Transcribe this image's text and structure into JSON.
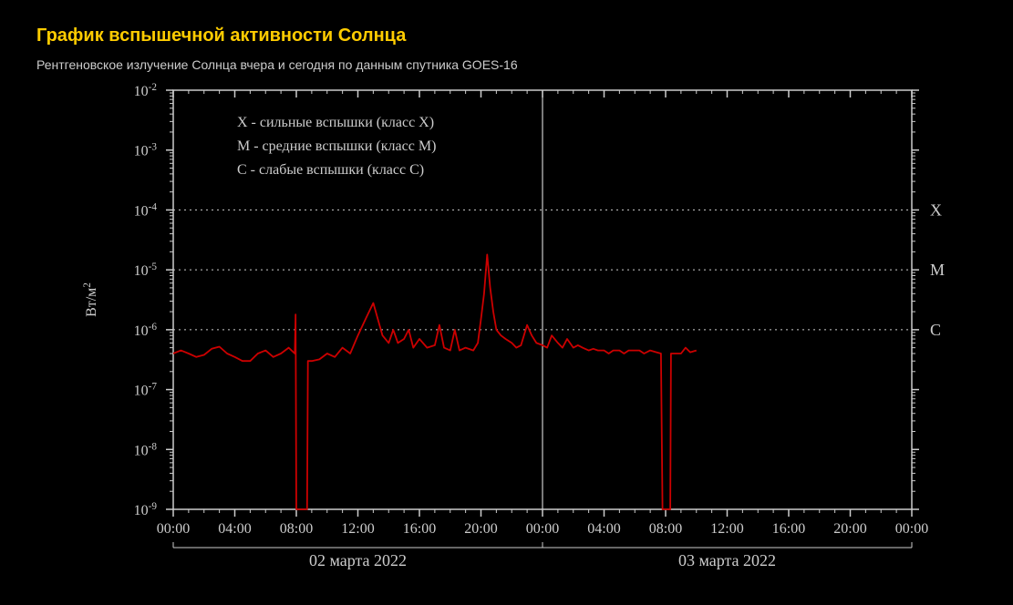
{
  "title": "График вспышечной активности Солнца",
  "subtitle": "Рентгеновское излучение Солнца вчера и сегодня по данным спутника GOES-16",
  "title_color": "#ffcc00",
  "subtitle_color": "#cccccc",
  "background_color": "#000000",
  "chart": {
    "type": "line",
    "plot_bg": "#000000",
    "axis_color": "#cccccc",
    "grid_color": "#555555",
    "line_color": "#cc0000",
    "line_width": 1.8,
    "y_axis": {
      "scale": "log",
      "min_exp": -9,
      "max_exp": -2,
      "label": "Вт/м",
      "label_superscript": "2",
      "tick_labels": [
        "10^-2",
        "10^-3",
        "10^-4",
        "10^-5",
        "10^-6",
        "10^-7",
        "10^-8",
        "10^-9"
      ],
      "label_fontsize": 16,
      "tick_fontsize": 16
    },
    "x_axis": {
      "range_hours": 48,
      "tick_step_hours": 4,
      "tick_labels": [
        "00:00",
        "04:00",
        "08:00",
        "12:00",
        "16:00",
        "20:00",
        "00:00",
        "04:00",
        "08:00",
        "12:00",
        "16:00",
        "20:00",
        "00:00"
      ],
      "date_labels": [
        "02 марта 2022",
        "03 марта 2022"
      ],
      "tick_fontsize": 16,
      "date_fontsize": 18
    },
    "class_lines": [
      {
        "label": "X",
        "exp": -4
      },
      {
        "label": "M",
        "exp": -5
      },
      {
        "label": "C",
        "exp": -6
      }
    ],
    "legend_lines": [
      "X - сильные вспышки (класс X)",
      "M - средние вспышки (класс M)",
      "C - слабые вспышки (класс C)"
    ],
    "legend_fontsize": 16,
    "series": [
      [
        0,
        4e-07
      ],
      [
        0.5,
        4.5e-07
      ],
      [
        1,
        4e-07
      ],
      [
        1.5,
        3.5e-07
      ],
      [
        2,
        3.8e-07
      ],
      [
        2.5,
        4.8e-07
      ],
      [
        3,
        5.2e-07
      ],
      [
        3.5,
        4e-07
      ],
      [
        4,
        3.5e-07
      ],
      [
        4.5,
        3e-07
      ],
      [
        5,
        3e-07
      ],
      [
        5.5,
        4e-07
      ],
      [
        6,
        4.5e-07
      ],
      [
        6.5,
        3.5e-07
      ],
      [
        7,
        4e-07
      ],
      [
        7.5,
        5e-07
      ],
      [
        7.9,
        4e-07
      ],
      [
        7.95,
        1.8e-06
      ],
      [
        8.0,
        1e-09
      ],
      [
        8.7,
        1e-09
      ],
      [
        8.75,
        3e-07
      ],
      [
        9,
        3e-07
      ],
      [
        9.5,
        3.2e-07
      ],
      [
        10,
        4e-07
      ],
      [
        10.5,
        3.5e-07
      ],
      [
        11,
        5e-07
      ],
      [
        11.5,
        4e-07
      ],
      [
        12,
        8e-07
      ],
      [
        12.5,
        1.5e-06
      ],
      [
        13,
        2.8e-06
      ],
      [
        13.3,
        1.5e-06
      ],
      [
        13.6,
        8e-07
      ],
      [
        14,
        6e-07
      ],
      [
        14.3,
        1e-06
      ],
      [
        14.6,
        6e-07
      ],
      [
        15,
        7e-07
      ],
      [
        15.3,
        1e-06
      ],
      [
        15.6,
        5e-07
      ],
      [
        16,
        7e-07
      ],
      [
        16.5,
        5e-07
      ],
      [
        17,
        5.5e-07
      ],
      [
        17.3,
        1.2e-06
      ],
      [
        17.6,
        5e-07
      ],
      [
        18,
        4.5e-07
      ],
      [
        18.3,
        1e-06
      ],
      [
        18.6,
        4.5e-07
      ],
      [
        19,
        5e-07
      ],
      [
        19.5,
        4.5e-07
      ],
      [
        19.8,
        6e-07
      ],
      [
        20,
        1.5e-06
      ],
      [
        20.2,
        4e-06
      ],
      [
        20.4,
        1.8e-05
      ],
      [
        20.6,
        5e-06
      ],
      [
        20.8,
        2e-06
      ],
      [
        21,
        1e-06
      ],
      [
        21.3,
        8e-07
      ],
      [
        21.6,
        7e-07
      ],
      [
        22,
        6e-07
      ],
      [
        22.3,
        5e-07
      ],
      [
        22.6,
        5.5e-07
      ],
      [
        23,
        1.2e-06
      ],
      [
        23.3,
        8e-07
      ],
      [
        23.6,
        6e-07
      ],
      [
        24,
        5.5e-07
      ],
      [
        24.3,
        5e-07
      ],
      [
        24.6,
        8e-07
      ],
      [
        25,
        6e-07
      ],
      [
        25.3,
        5e-07
      ],
      [
        25.6,
        7e-07
      ],
      [
        26,
        5e-07
      ],
      [
        26.3,
        5.5e-07
      ],
      [
        26.6,
        5e-07
      ],
      [
        27,
        4.5e-07
      ],
      [
        27.3,
        4.8e-07
      ],
      [
        27.6,
        4.5e-07
      ],
      [
        28,
        4.5e-07
      ],
      [
        28.3,
        4e-07
      ],
      [
        28.6,
        4.5e-07
      ],
      [
        29,
        4.5e-07
      ],
      [
        29.3,
        4e-07
      ],
      [
        29.6,
        4.5e-07
      ],
      [
        30,
        4.5e-07
      ],
      [
        30.3,
        4.5e-07
      ],
      [
        30.6,
        4e-07
      ],
      [
        31,
        4.5e-07
      ],
      [
        31.4,
        4.2e-07
      ],
      [
        31.7,
        4e-07
      ],
      [
        31.8,
        1e-09
      ],
      [
        32.3,
        1e-09
      ],
      [
        32.35,
        4e-07
      ],
      [
        32.6,
        4e-07
      ],
      [
        33,
        4e-07
      ],
      [
        33.3,
        5e-07
      ],
      [
        33.6,
        4.2e-07
      ],
      [
        34,
        4.5e-07
      ]
    ]
  }
}
